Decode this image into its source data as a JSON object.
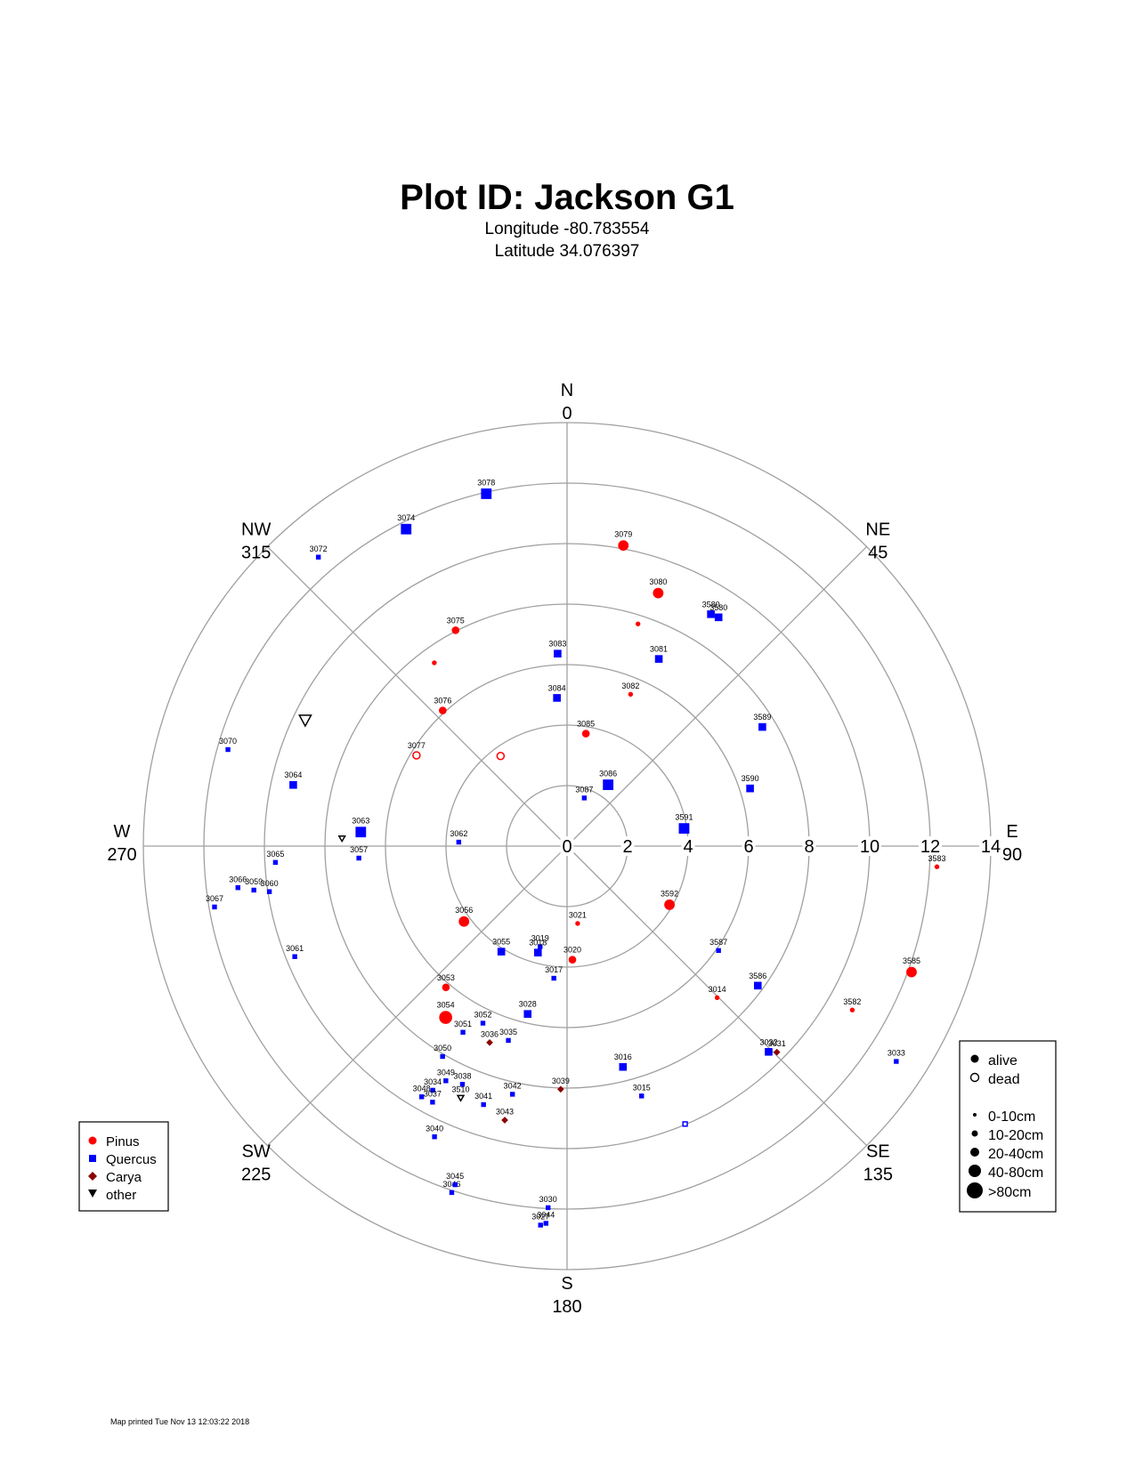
{
  "header": {
    "title": "Plot ID:  Jackson G1",
    "longitude": "Longitude -80.783554",
    "latitude": "Latitude 34.076397"
  },
  "footer": {
    "printed": "Map printed Tue Nov 13 12:03:22 2018"
  },
  "colors": {
    "pinus": "#ff0000",
    "quercus": "#0000ff",
    "carya": "#8b0000",
    "other": "#000000",
    "grid": "#a0a0a0"
  },
  "chart_data": {
    "type": "scatter",
    "coordinate_system": "polar (azimuth in degrees clockwise from north, distance from plot center)",
    "radial_ticks": [
      0,
      2,
      4,
      6,
      8,
      10,
      12,
      14
    ],
    "radial_range": [
      0,
      14
    ],
    "directions": [
      {
        "label": "N",
        "deg": "0",
        "az": 0
      },
      {
        "label": "NE",
        "deg": "45",
        "az": 45
      },
      {
        "label": "E",
        "deg": "90",
        "az": 90
      },
      {
        "label": "SE",
        "deg": "135",
        "az": 135
      },
      {
        "label": "S",
        "deg": "180",
        "az": 180
      },
      {
        "label": "SW",
        "deg": "225",
        "az": 225
      },
      {
        "label": "W",
        "deg": "270",
        "az": 270
      },
      {
        "label": "NW",
        "deg": "315",
        "az": 315
      }
    ],
    "species_legend": [
      {
        "label": "Pinus",
        "species": "pinus"
      },
      {
        "label": "Quercus",
        "species": "quercus"
      },
      {
        "label": "Carya",
        "species": "carya"
      },
      {
        "label": "other",
        "species": "other"
      }
    ],
    "status_legend": [
      {
        "label": "alive",
        "status": "alive"
      },
      {
        "label": "dead",
        "status": "dead"
      }
    ],
    "size_legend": [
      {
        "label": "0-10cm",
        "size": 1
      },
      {
        "label": "10-20cm",
        "size": 2
      },
      {
        "label": "20-40cm",
        "size": 3
      },
      {
        "label": "40-80cm",
        "size": 4
      },
      {
        "label": ">80cm",
        "size": 5
      }
    ],
    "trees": [
      {
        "id": "3078",
        "species": "quercus",
        "status": "alive",
        "size": 3,
        "az": 347.1,
        "dist": 11.95
      },
      {
        "id": "3074",
        "species": "quercus",
        "status": "alive",
        "size": 3,
        "az": 333.1,
        "dist": 11.75
      },
      {
        "id": "3079",
        "species": "pinus",
        "status": "alive",
        "size": 3,
        "az": 10.6,
        "dist": 10.11
      },
      {
        "id": "3080",
        "species": "pinus",
        "status": "alive",
        "size": 3,
        "az": 19.8,
        "dist": 8.89
      },
      {
        "id": "",
        "species": "pinus",
        "status": "alive",
        "size": 1,
        "az": 17.7,
        "dist": 7.71
      },
      {
        "id": "3580",
        "species": "quercus",
        "status": "alive",
        "size": 2,
        "az": 31.8,
        "dist": 9.02
      },
      {
        "id": "3580",
        "species": "quercus",
        "status": "alive",
        "size": 2,
        "az": 33.5,
        "dist": 9.07
      },
      {
        "id": "3075",
        "species": "pinus",
        "status": "alive",
        "size": 2,
        "az": 332.7,
        "dist": 8.03
      },
      {
        "id": "3072",
        "species": "quercus",
        "status": "alive",
        "size": 1,
        "az": 319.3,
        "dist": 12.6
      },
      {
        "id": "3083",
        "species": "quercus",
        "status": "alive",
        "size": 2,
        "az": 357.2,
        "dist": 6.37
      },
      {
        "id": "3081",
        "species": "quercus",
        "status": "alive",
        "size": 2,
        "az": 26.1,
        "dist": 6.89
      },
      {
        "id": "3082",
        "species": "pinus",
        "status": "alive",
        "size": 1,
        "az": 22.7,
        "dist": 5.44
      },
      {
        "id": "",
        "species": "pinus",
        "status": "alive",
        "size": 1,
        "az": 324.1,
        "dist": 7.48
      },
      {
        "id": "3084",
        "species": "quercus",
        "status": "alive",
        "size": 2,
        "az": 356.1,
        "dist": 4.91
      },
      {
        "id": "3076",
        "species": "pinus",
        "status": "alive",
        "size": 2,
        "az": 317.5,
        "dist": 6.08
      },
      {
        "id": "3085",
        "species": "pinus",
        "status": "alive",
        "size": 2,
        "az": 9.5,
        "dist": 3.77
      },
      {
        "id": "3589",
        "species": "quercus",
        "status": "alive",
        "size": 2,
        "az": 58.6,
        "dist": 7.56
      },
      {
        "id": "3077",
        "species": "pinus",
        "status": "dead",
        "size": 2,
        "az": 301.1,
        "dist": 5.81
      },
      {
        "id": "",
        "species": "pinus",
        "status": "dead",
        "size": 2,
        "az": 323.6,
        "dist": 3.7
      },
      {
        "id": "3086",
        "species": "quercus",
        "status": "alive",
        "size": 3,
        "az": 33.8,
        "dist": 2.44
      },
      {
        "id": "3087",
        "species": "quercus",
        "status": "alive",
        "size": 1,
        "az": 19.7,
        "dist": 1.69
      },
      {
        "id": "3590",
        "species": "quercus",
        "status": "alive",
        "size": 2,
        "az": 72.5,
        "dist": 6.34
      },
      {
        "id": "3591",
        "species": "quercus",
        "status": "alive",
        "size": 3,
        "az": 81.4,
        "dist": 3.91
      },
      {
        "id": "3070",
        "species": "quercus",
        "status": "alive",
        "size": 1,
        "az": 285.9,
        "dist": 11.65
      },
      {
        "id": "",
        "species": "other",
        "status": "dead",
        "size": 3,
        "az": 295.7,
        "dist": 9.6
      },
      {
        "id": "3064",
        "species": "quercus",
        "status": "alive",
        "size": 2,
        "az": 282.6,
        "dist": 9.27
      },
      {
        "id": "3063",
        "species": "quercus",
        "status": "alive",
        "size": 3,
        "az": 273.9,
        "dist": 6.83
      },
      {
        "id": "",
        "species": "other",
        "status": "dead",
        "size": 1,
        "az": 272.0,
        "dist": 7.44
      },
      {
        "id": "3062",
        "species": "quercus",
        "status": "alive",
        "size": 1,
        "az": 272.1,
        "dist": 3.58
      },
      {
        "id": "3065",
        "species": "quercus",
        "status": "alive",
        "size": 1,
        "az": 266.8,
        "dist": 9.65
      },
      {
        "id": "3057",
        "species": "quercus",
        "status": "alive",
        "size": 1,
        "az": 266.7,
        "dist": 6.89
      },
      {
        "id": "3583",
        "species": "pinus",
        "status": "alive",
        "size": 1,
        "az": 93.2,
        "dist": 12.24
      },
      {
        "id": "3066",
        "species": "quercus",
        "status": "alive",
        "size": 1,
        "az": 262.8,
        "dist": 10.96
      },
      {
        "id": "3059",
        "species": "quercus",
        "status": "alive",
        "size": 1,
        "az": 262.0,
        "dist": 10.45
      },
      {
        "id": "3060",
        "species": "quercus",
        "status": "alive",
        "size": 1,
        "az": 261.3,
        "dist": 9.95
      },
      {
        "id": "3067",
        "species": "quercus",
        "status": "alive",
        "size": 1,
        "az": 260.2,
        "dist": 11.82
      },
      {
        "id": "3592",
        "species": "pinus",
        "status": "alive",
        "size": 3,
        "az": 119.8,
        "dist": 3.9
      },
      {
        "id": "3021",
        "species": "pinus",
        "status": "alive",
        "size": 1,
        "az": 172.2,
        "dist": 2.58
      },
      {
        "id": "3056",
        "species": "pinus",
        "status": "alive",
        "size": 3,
        "az": 233.8,
        "dist": 4.22
      },
      {
        "id": "3587",
        "species": "quercus",
        "status": "alive",
        "size": 1,
        "az": 124.6,
        "dist": 6.08
      },
      {
        "id": "3061",
        "species": "quercus",
        "status": "alive",
        "size": 1,
        "az": 247.9,
        "dist": 9.71
      },
      {
        "id": "3055",
        "species": "quercus",
        "status": "alive",
        "size": 2,
        "az": 211.9,
        "dist": 4.11
      },
      {
        "id": "3019",
        "species": "quercus",
        "status": "alive",
        "size": 1,
        "az": 195.0,
        "dist": 3.44
      },
      {
        "id": "3018",
        "species": "quercus",
        "status": "alive",
        "size": 2,
        "az": 195.3,
        "dist": 3.65
      },
      {
        "id": "3020",
        "species": "pinus",
        "status": "alive",
        "size": 2,
        "az": 177.3,
        "dist": 3.76
      },
      {
        "id": "3585",
        "species": "pinus",
        "status": "alive",
        "size": 3,
        "az": 110.1,
        "dist": 12.12
      },
      {
        "id": "3586",
        "species": "quercus",
        "status": "alive",
        "size": 2,
        "az": 126.2,
        "dist": 7.81
      },
      {
        "id": "3017",
        "species": "quercus",
        "status": "alive",
        "size": 1,
        "az": 185.7,
        "dist": 4.39
      },
      {
        "id": "3053",
        "species": "pinus",
        "status": "alive",
        "size": 2,
        "az": 220.6,
        "dist": 6.15
      },
      {
        "id": "3028",
        "species": "quercus",
        "status": "alive",
        "size": 2,
        "az": 193.2,
        "dist": 5.7
      },
      {
        "id": "3054",
        "species": "pinus",
        "status": "alive",
        "size": 4,
        "az": 215.3,
        "dist": 6.94
      },
      {
        "id": "3052",
        "species": "quercus",
        "status": "alive",
        "size": 1,
        "az": 205.4,
        "dist": 6.48
      },
      {
        "id": "3051",
        "species": "quercus",
        "status": "alive",
        "size": 1,
        "az": 209.2,
        "dist": 7.05
      },
      {
        "id": "3036",
        "species": "carya",
        "status": "alive",
        "size": 1,
        "az": 201.5,
        "dist": 6.98
      },
      {
        "id": "3035",
        "species": "quercus",
        "status": "alive",
        "size": 1,
        "az": 196.8,
        "dist": 6.71
      },
      {
        "id": "3050",
        "species": "quercus",
        "status": "alive",
        "size": 1,
        "az": 210.6,
        "dist": 8.08
      },
      {
        "id": "3016",
        "species": "quercus",
        "status": "alive",
        "size": 2,
        "az": 165.8,
        "dist": 7.53
      },
      {
        "id": "3014",
        "species": "pinus",
        "status": "alive",
        "size": 1,
        "az": 135.3,
        "dist": 7.05
      },
      {
        "id": "3033",
        "species": "quercus",
        "status": "alive",
        "size": 1,
        "az": 123.2,
        "dist": 13.0
      },
      {
        "id": "3582",
        "species": "pinus",
        "status": "alive",
        "size": 1,
        "az": 119.9,
        "dist": 10.87
      },
      {
        "id": "3049",
        "species": "quercus",
        "status": "alive",
        "size": 1,
        "az": 207.3,
        "dist": 8.73
      },
      {
        "id": "3038",
        "species": "quercus",
        "status": "alive",
        "size": 1,
        "az": 203.7,
        "dist": 8.6
      },
      {
        "id": "3510",
        "species": "other",
        "status": "dead",
        "size": 1,
        "az": 202.9,
        "dist": 9.03
      },
      {
        "id": "3042",
        "species": "quercus",
        "status": "alive",
        "size": 1,
        "az": 192.4,
        "dist": 8.4
      },
      {
        "id": "3039",
        "species": "carya",
        "status": "alive",
        "size": 1,
        "az": 181.5,
        "dist": 8.04
      },
      {
        "id": "3034",
        "species": "quercus",
        "status": "alive",
        "size": 1,
        "az": 208.8,
        "dist": 9.21
      },
      {
        "id": "3048",
        "species": "quercus",
        "status": "alive",
        "size": 1,
        "az": 210.1,
        "dist": 9.58
      },
      {
        "id": "3037",
        "species": "quercus",
        "status": "alive",
        "size": 1,
        "az": 207.7,
        "dist": 9.56
      },
      {
        "id": "3041",
        "species": "quercus",
        "status": "alive",
        "size": 1,
        "az": 197.9,
        "dist": 8.98
      },
      {
        "id": "3043",
        "species": "carya",
        "status": "alive",
        "size": 1,
        "az": 192.8,
        "dist": 9.29
      },
      {
        "id": "3015",
        "species": "quercus",
        "status": "alive",
        "size": 1,
        "az": 163.4,
        "dist": 8.62
      },
      {
        "id": "3040",
        "species": "quercus",
        "status": "alive",
        "size": 1,
        "az": 204.5,
        "dist": 10.56
      },
      {
        "id": "",
        "species": "quercus",
        "status": "dead",
        "size": 1,
        "az": 157.0,
        "dist": 9.98
      },
      {
        "id": "3032",
        "species": "quercus",
        "status": "alive",
        "size": 2,
        "az": 135.6,
        "dist": 9.52
      },
      {
        "id": "3031",
        "species": "carya",
        "status": "alive",
        "size": 1,
        "az": 134.5,
        "dist": 9.72
      },
      {
        "id": "3046",
        "species": "quercus",
        "status": "alive",
        "size": 1,
        "az": 198.4,
        "dist": 12.07
      },
      {
        "id": "3045",
        "species": "quercus",
        "status": "alive",
        "size": 1,
        "az": 198.3,
        "dist": 11.79
      },
      {
        "id": "3030",
        "species": "quercus",
        "status": "alive",
        "size": 1,
        "az": 183.0,
        "dist": 11.97
      },
      {
        "id": "3044",
        "species": "quercus",
        "status": "alive",
        "size": 1,
        "az": 183.2,
        "dist": 12.49
      },
      {
        "id": "3027",
        "species": "quercus",
        "status": "alive",
        "size": 1,
        "az": 184.0,
        "dist": 12.56
      }
    ]
  }
}
